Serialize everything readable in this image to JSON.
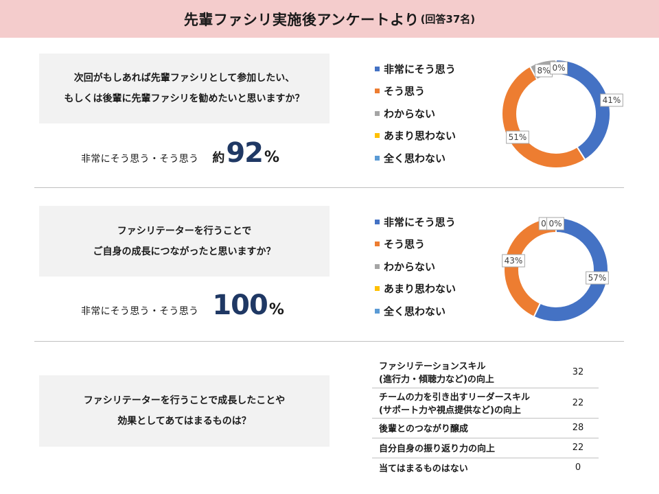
{
  "header": {
    "title": "先輩ファシリ実施後アンケートより",
    "subtitle": "(回答37名)"
  },
  "legend_items": [
    {
      "label": "非常にそう思う",
      "color": "#4472c4"
    },
    {
      "label": "そう思う",
      "color": "#ed7d31"
    },
    {
      "label": "わからない",
      "color": "#a5a5a5"
    },
    {
      "label": "あまり思わない",
      "color": "#ffc000"
    },
    {
      "label": "全く思わない",
      "color": "#5b9bd5"
    }
  ],
  "q1": {
    "lines": [
      "次回がもしあれば先輩ファシリとして参加したい、",
      "もしくは後輩に先輩ファシリを勧めたいと思いますか？"
    ],
    "stat_label": "非常にそう思う・そう思う",
    "approx": "約",
    "value": "92",
    "unit": "%"
  },
  "q2": {
    "lines": [
      "ファシリテーターを行うことで",
      "ご自身の成長につながったと思いますか？"
    ],
    "stat_label": "非常にそう思う・そう思う",
    "value": "100",
    "unit": "%"
  },
  "q3": {
    "lines": [
      "ファシリテーターを行うことで成長したことや",
      "効果としてあてはまるものは？"
    ]
  },
  "results_table": [
    {
      "label_lines": [
        "ファシリテーションスキル",
        "(進行力・傾聴力など)の向上"
      ],
      "count": "32"
    },
    {
      "label_lines": [
        "チームの力を引き出すリーダースキル",
        "(サポート力や視点提供など)の向上"
      ],
      "count": "22"
    },
    {
      "label_lines": [
        "後輩とのつながり醸成"
      ],
      "count": "28"
    },
    {
      "label_lines": [
        "自分自身の振り返り力の向上"
      ],
      "count": "22"
    },
    {
      "label_lines": [
        "当てはまるものはない"
      ],
      "count": "0"
    }
  ],
  "chart_data": [
    {
      "type": "pie",
      "donut": true,
      "categories": [
        "非常にそう思う",
        "そう思う",
        "わからない",
        "あまり思わない",
        "全く思わない"
      ],
      "values": [
        41,
        51,
        8,
        0,
        0
      ],
      "data_labels": [
        "41%",
        "51%",
        "8%",
        "0%",
        "0%"
      ],
      "legend": "left"
    },
    {
      "type": "pie",
      "donut": true,
      "categories": [
        "非常にそう思う",
        "そう思う",
        "わからない",
        "あまり思わない",
        "全く思わない"
      ],
      "values": [
        57,
        43,
        0,
        0,
        0
      ],
      "data_labels": [
        "57%",
        "43%",
        "0",
        "0%",
        ""
      ],
      "legend": "left"
    }
  ]
}
